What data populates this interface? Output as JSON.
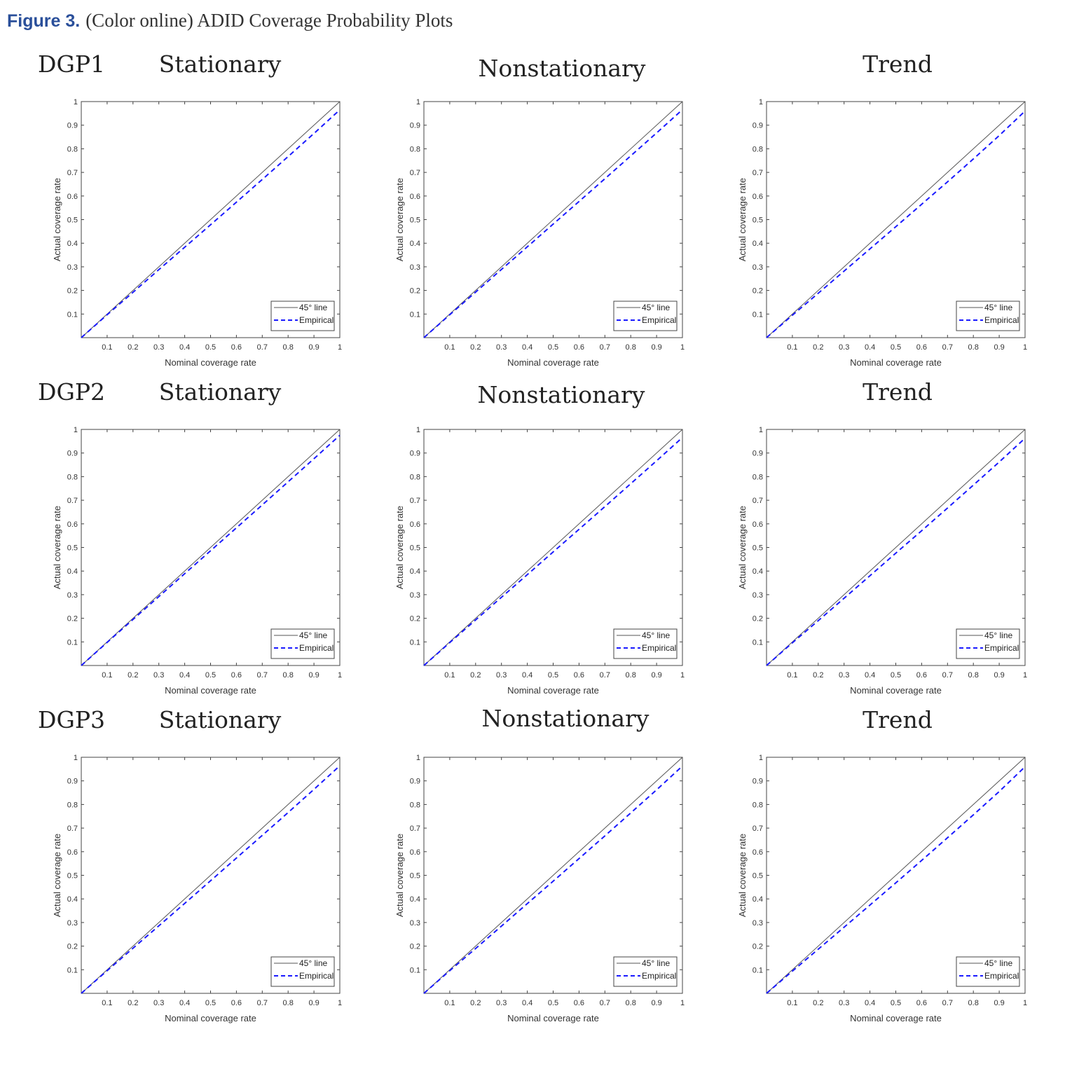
{
  "figure": {
    "label": "Figure 3.",
    "caption": "(Color online) ADID Coverage Probability Plots"
  },
  "colors": {
    "ref_line": "#555555",
    "empirical": "#1a1aff",
    "caption": "#2a4f9a"
  },
  "rows": [
    {
      "label": "DGP1"
    },
    {
      "label": "DGP2"
    },
    {
      "label": "DGP3"
    }
  ],
  "columns": [
    {
      "title": "Stationary"
    },
    {
      "title": "Nonstationary"
    },
    {
      "title": "Trend"
    }
  ],
  "chart_data": [
    {
      "type": "line",
      "xlabel": "Nominal coverage rate",
      "ylabel": "Actual coverage rate",
      "xlim": [
        0,
        1
      ],
      "ylim": [
        0,
        1
      ],
      "x_ticks": [
        "0.1",
        "0.2",
        "0.3",
        "0.4",
        "0.5",
        "0.6",
        "0.7",
        "0.8",
        "0.9",
        "1"
      ],
      "y_ticks": [
        "0.1",
        "0.2",
        "0.3",
        "0.4",
        "0.5",
        "0.6",
        "0.7",
        "0.8",
        "0.9",
        "1"
      ],
      "legend_position": "bottom-right",
      "series": [
        {
          "name": "45° line",
          "style": "solid",
          "x": [
            0,
            1
          ],
          "y": [
            0,
            1
          ]
        },
        {
          "name": "Empirical",
          "style": "dashed",
          "x": [
            0,
            0.1,
            0.2,
            0.3,
            0.4,
            0.5,
            0.6,
            0.7,
            0.8,
            0.9,
            1
          ],
          "y": [
            0,
            0.097,
            0.192,
            0.288,
            0.383,
            0.478,
            0.574,
            0.67,
            0.767,
            0.865,
            0.965
          ]
        }
      ]
    },
    {
      "type": "line",
      "xlabel": "Nominal coverage rate",
      "ylabel": "Actual coverage rate",
      "xlim": [
        0,
        1
      ],
      "ylim": [
        0,
        1
      ],
      "x_ticks": [
        "0.1",
        "0.2",
        "0.3",
        "0.4",
        "0.5",
        "0.6",
        "0.7",
        "0.8",
        "0.9",
        "1"
      ],
      "y_ticks": [
        "0.1",
        "0.2",
        "0.3",
        "0.4",
        "0.5",
        "0.6",
        "0.7",
        "0.8",
        "0.9",
        "1"
      ],
      "legend_position": "bottom-right",
      "series": [
        {
          "name": "45° line",
          "style": "solid",
          "x": [
            0,
            1
          ],
          "y": [
            0,
            1
          ]
        },
        {
          "name": "Empirical",
          "style": "dashed",
          "x": [
            0,
            0.1,
            0.2,
            0.3,
            0.4,
            0.5,
            0.6,
            0.7,
            0.8,
            0.9,
            1
          ],
          "y": [
            0,
            0.097,
            0.193,
            0.289,
            0.385,
            0.481,
            0.577,
            0.673,
            0.77,
            0.867,
            0.966
          ]
        }
      ]
    },
    {
      "type": "line",
      "xlabel": "Nominal coverage rate",
      "ylabel": "Actual coverage rate",
      "xlim": [
        0,
        1
      ],
      "ylim": [
        0,
        1
      ],
      "x_ticks": [
        "0.1",
        "0.2",
        "0.3",
        "0.4",
        "0.5",
        "0.6",
        "0.7",
        "0.8",
        "0.9",
        "1"
      ],
      "y_ticks": [
        "0.1",
        "0.2",
        "0.3",
        "0.4",
        "0.5",
        "0.6",
        "0.7",
        "0.8",
        "0.9",
        "1"
      ],
      "legend_position": "bottom-right",
      "series": [
        {
          "name": "45° line",
          "style": "solid",
          "x": [
            0,
            1
          ],
          "y": [
            0,
            1
          ]
        },
        {
          "name": "Empirical",
          "style": "dashed",
          "x": [
            0,
            0.1,
            0.2,
            0.3,
            0.4,
            0.5,
            0.6,
            0.7,
            0.8,
            0.9,
            1
          ],
          "y": [
            0,
            0.095,
            0.188,
            0.282,
            0.376,
            0.47,
            0.565,
            0.66,
            0.757,
            0.856,
            0.96
          ]
        }
      ]
    },
    {
      "type": "line",
      "xlabel": "Nominal coverage rate",
      "ylabel": "Actual coverage rate",
      "xlim": [
        0,
        1
      ],
      "ylim": [
        0,
        1
      ],
      "x_ticks": [
        "0.1",
        "0.2",
        "0.3",
        "0.4",
        "0.5",
        "0.6",
        "0.7",
        "0.8",
        "0.9",
        "1"
      ],
      "y_ticks": [
        "0.1",
        "0.2",
        "0.3",
        "0.4",
        "0.5",
        "0.6",
        "0.7",
        "0.8",
        "0.9",
        "1"
      ],
      "legend_position": "bottom-right",
      "series": [
        {
          "name": "45° line",
          "style": "solid",
          "x": [
            0,
            1
          ],
          "y": [
            0,
            1
          ]
        },
        {
          "name": "Empirical",
          "style": "dashed",
          "x": [
            0,
            0.1,
            0.2,
            0.3,
            0.4,
            0.5,
            0.6,
            0.7,
            0.8,
            0.9,
            1
          ],
          "y": [
            0,
            0.098,
            0.195,
            0.292,
            0.389,
            0.486,
            0.583,
            0.68,
            0.778,
            0.876,
            0.975
          ]
        }
      ]
    },
    {
      "type": "line",
      "xlabel": "Nominal coverage rate",
      "ylabel": "Actual coverage rate",
      "xlim": [
        0,
        1
      ],
      "ylim": [
        0,
        1
      ],
      "x_ticks": [
        "0.1",
        "0.2",
        "0.3",
        "0.4",
        "0.5",
        "0.6",
        "0.7",
        "0.8",
        "0.9",
        "1"
      ],
      "y_ticks": [
        "0.1",
        "0.2",
        "0.3",
        "0.4",
        "0.5",
        "0.6",
        "0.7",
        "0.8",
        "0.9",
        "1"
      ],
      "legend_position": "bottom-right",
      "series": [
        {
          "name": "45° line",
          "style": "solid",
          "x": [
            0,
            1
          ],
          "y": [
            0,
            1
          ]
        },
        {
          "name": "Empirical",
          "style": "dashed",
          "x": [
            0,
            0.1,
            0.2,
            0.3,
            0.4,
            0.5,
            0.6,
            0.7,
            0.8,
            0.9,
            1
          ],
          "y": [
            0,
            0.097,
            0.193,
            0.289,
            0.385,
            0.481,
            0.577,
            0.673,
            0.77,
            0.867,
            0.966
          ]
        }
      ]
    },
    {
      "type": "line",
      "xlabel": "Nominal coverage rate",
      "ylabel": "Actual coverage rate",
      "xlim": [
        0,
        1
      ],
      "ylim": [
        0,
        1
      ],
      "x_ticks": [
        "0.1",
        "0.2",
        "0.3",
        "0.4",
        "0.5",
        "0.6",
        "0.7",
        "0.8",
        "0.9",
        "1"
      ],
      "y_ticks": [
        "0.1",
        "0.2",
        "0.3",
        "0.4",
        "0.5",
        "0.6",
        "0.7",
        "0.8",
        "0.9",
        "1"
      ],
      "legend_position": "bottom-right",
      "series": [
        {
          "name": "45° line",
          "style": "solid",
          "x": [
            0,
            1
          ],
          "y": [
            0,
            1
          ]
        },
        {
          "name": "Empirical",
          "style": "dashed",
          "x": [
            0,
            0.1,
            0.2,
            0.3,
            0.4,
            0.5,
            0.6,
            0.7,
            0.8,
            0.9,
            1
          ],
          "y": [
            0,
            0.096,
            0.19,
            0.285,
            0.38,
            0.476,
            0.571,
            0.667,
            0.764,
            0.862,
            0.963
          ]
        }
      ]
    },
    {
      "type": "line",
      "xlabel": "Nominal coverage rate",
      "ylabel": "Actual coverage rate",
      "xlim": [
        0,
        1
      ],
      "ylim": [
        0,
        1
      ],
      "x_ticks": [
        "0.1",
        "0.2",
        "0.3",
        "0.4",
        "0.5",
        "0.6",
        "0.7",
        "0.8",
        "0.9",
        "1"
      ],
      "y_ticks": [
        "0.1",
        "0.2",
        "0.3",
        "0.4",
        "0.5",
        "0.6",
        "0.7",
        "0.8",
        "0.9",
        "1"
      ],
      "legend_position": "bottom-right",
      "series": [
        {
          "name": "45° line",
          "style": "solid",
          "x": [
            0,
            1
          ],
          "y": [
            0,
            1
          ]
        },
        {
          "name": "Empirical",
          "style": "dashed",
          "x": [
            0,
            0.1,
            0.2,
            0.3,
            0.4,
            0.5,
            0.6,
            0.7,
            0.8,
            0.9,
            1
          ],
          "y": [
            0,
            0.096,
            0.191,
            0.286,
            0.381,
            0.477,
            0.573,
            0.669,
            0.766,
            0.864,
            0.964
          ]
        }
      ]
    },
    {
      "type": "line",
      "xlabel": "Nominal coverage rate",
      "ylabel": "Actual coverage rate",
      "xlim": [
        0,
        1
      ],
      "ylim": [
        0,
        1
      ],
      "x_ticks": [
        "0.1",
        "0.2",
        "0.3",
        "0.4",
        "0.5",
        "0.6",
        "0.7",
        "0.8",
        "0.9",
        "1"
      ],
      "y_ticks": [
        "0.1",
        "0.2",
        "0.3",
        "0.4",
        "0.5",
        "0.6",
        "0.7",
        "0.8",
        "0.9",
        "1"
      ],
      "legend_position": "bottom-right",
      "series": [
        {
          "name": "45° line",
          "style": "solid",
          "x": [
            0,
            1
          ],
          "y": [
            0,
            1
          ]
        },
        {
          "name": "Empirical",
          "style": "dashed",
          "x": [
            0,
            0.1,
            0.2,
            0.3,
            0.4,
            0.5,
            0.6,
            0.7,
            0.8,
            0.9,
            1
          ],
          "y": [
            0,
            0.096,
            0.19,
            0.285,
            0.38,
            0.475,
            0.571,
            0.667,
            0.764,
            0.862,
            0.963
          ]
        }
      ]
    },
    {
      "type": "line",
      "xlabel": "Nominal coverage rate",
      "ylabel": "Actual coverage rate",
      "xlim": [
        0,
        1
      ],
      "ylim": [
        0,
        1
      ],
      "x_ticks": [
        "0.1",
        "0.2",
        "0.3",
        "0.4",
        "0.5",
        "0.6",
        "0.7",
        "0.8",
        "0.9",
        "1"
      ],
      "y_ticks": [
        "0.1",
        "0.2",
        "0.3",
        "0.4",
        "0.5",
        "0.6",
        "0.7",
        "0.8",
        "0.9",
        "1"
      ],
      "legend_position": "bottom-right",
      "series": [
        {
          "name": "45° line",
          "style": "solid",
          "x": [
            0,
            1
          ],
          "y": [
            0,
            1
          ]
        },
        {
          "name": "Empirical",
          "style": "dashed",
          "x": [
            0,
            0.1,
            0.2,
            0.3,
            0.4,
            0.5,
            0.6,
            0.7,
            0.8,
            0.9,
            1
          ],
          "y": [
            0,
            0.094,
            0.187,
            0.28,
            0.374,
            0.468,
            0.563,
            0.659,
            0.756,
            0.855,
            0.96
          ]
        }
      ]
    }
  ]
}
